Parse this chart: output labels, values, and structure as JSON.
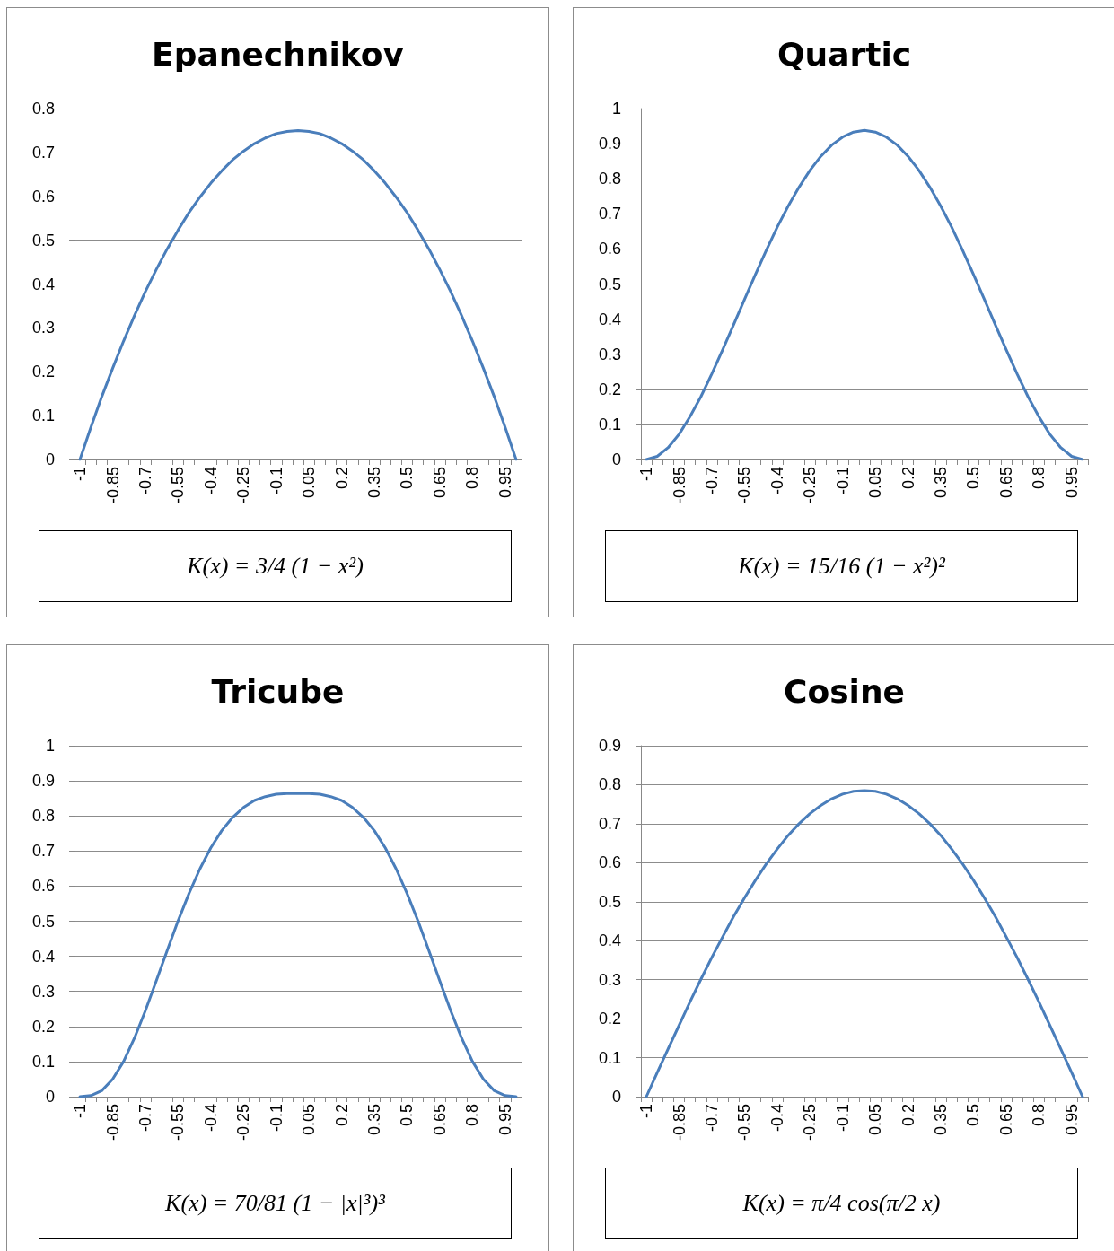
{
  "chart_data": [
    {
      "type": "line",
      "title": "Epanechnikov",
      "categories": [
        "-1",
        null,
        null,
        "-0.85",
        null,
        null,
        "-0.7",
        null,
        null,
        "-0.55",
        null,
        null,
        "-0.4",
        null,
        null,
        "-0.25",
        null,
        null,
        "-0.1",
        null,
        null,
        "0.05",
        null,
        null,
        "0.2",
        null,
        null,
        "0.35",
        null,
        null,
        "0.5",
        null,
        null,
        "0.65",
        null,
        null,
        "0.8",
        null,
        null,
        "0.95",
        null
      ],
      "series": [
        {
          "color": "#4a7ebb",
          "values": [
            0,
            0.073,
            0.143,
            0.208,
            0.27,
            0.328,
            0.383,
            0.433,
            0.48,
            0.523,
            0.563,
            0.598,
            0.63,
            0.658,
            0.683,
            0.703,
            0.72,
            0.733,
            0.743,
            0.748,
            0.75,
            0.748,
            0.743,
            0.733,
            0.72,
            0.703,
            0.683,
            0.658,
            0.63,
            0.598,
            0.563,
            0.523,
            0.48,
            0.433,
            0.383,
            0.328,
            0.27,
            0.208,
            0.143,
            0.073,
            0
          ]
        }
      ],
      "ylim": [
        0,
        0.8
      ],
      "yticks": [
        0,
        0.1,
        0.2,
        0.3,
        0.4,
        0.5,
        0.6,
        0.7,
        0.8
      ],
      "grid": "y",
      "marker": "none",
      "line_style": "solid",
      "annotations": [
        "K(x) = 3/4 (1 − x²)"
      ]
    },
    {
      "type": "line",
      "title": "Quartic",
      "categories": [
        "-1",
        null,
        null,
        "-0.85",
        null,
        null,
        "-0.7",
        null,
        null,
        "-0.55",
        null,
        null,
        "-0.4",
        null,
        null,
        "-0.25",
        null,
        null,
        "-0.1",
        null,
        null,
        "0.05",
        null,
        null,
        "0.2",
        null,
        null,
        "0.35",
        null,
        null,
        "0.5",
        null,
        null,
        "0.65",
        null,
        null,
        "0.8",
        null,
        null,
        "0.95",
        null
      ],
      "series": [
        {
          "color": "#4a7ebb",
          "values": [
            0,
            0.009,
            0.034,
            0.072,
            0.122,
            0.179,
            0.244,
            0.313,
            0.384,
            0.456,
            0.527,
            0.596,
            0.662,
            0.722,
            0.776,
            0.824,
            0.864,
            0.896,
            0.919,
            0.933,
            0.938,
            0.933,
            0.919,
            0.896,
            0.864,
            0.824,
            0.776,
            0.722,
            0.662,
            0.596,
            0.527,
            0.456,
            0.384,
            0.313,
            0.244,
            0.179,
            0.122,
            0.072,
            0.034,
            0.009,
            0
          ]
        }
      ],
      "ylim": [
        0,
        1
      ],
      "yticks": [
        0,
        0.1,
        0.2,
        0.3,
        0.4,
        0.5,
        0.6,
        0.7,
        0.8,
        0.9,
        1
      ],
      "grid": "y",
      "marker": "none",
      "line_style": "solid",
      "annotations": [
        "K(x) = 15/16 (1 − x²)²"
      ]
    },
    {
      "type": "line",
      "title": "Tricube",
      "categories": [
        "-1",
        null,
        null,
        "-0.85",
        null,
        null,
        "-0.7",
        null,
        null,
        "-0.55",
        null,
        null,
        "-0.4",
        null,
        null,
        "-0.25",
        null,
        null,
        "-0.1",
        null,
        null,
        "0.05",
        null,
        null,
        "0.2",
        null,
        null,
        "0.35",
        null,
        null,
        "0.5",
        null,
        null,
        "0.65",
        null,
        null,
        "0.8",
        null,
        null,
        "0.95",
        null
      ],
      "series": [
        {
          "color": "#4a7ebb",
          "values": [
            0,
            0.003,
            0.017,
            0.05,
            0.1,
            0.167,
            0.245,
            0.33,
            0.416,
            0.501,
            0.579,
            0.649,
            0.709,
            0.758,
            0.796,
            0.824,
            0.844,
            0.855,
            0.862,
            0.864,
            0.864,
            0.864,
            0.862,
            0.855,
            0.844,
            0.824,
            0.796,
            0.758,
            0.709,
            0.649,
            0.579,
            0.501,
            0.416,
            0.33,
            0.245,
            0.167,
            0.1,
            0.05,
            0.017,
            0.003,
            0
          ]
        }
      ],
      "ylim": [
        0,
        1
      ],
      "yticks": [
        0,
        0.1,
        0.2,
        0.3,
        0.4,
        0.5,
        0.6,
        0.7,
        0.8,
        0.9,
        1
      ],
      "grid": "y",
      "marker": "none",
      "line_style": "solid",
      "annotations": [
        "K(x) = 70/81 (1 − |x|³)³"
      ]
    },
    {
      "type": "line",
      "title": "Cosine",
      "categories": [
        "-1",
        null,
        null,
        "-0.85",
        null,
        null,
        "-0.7",
        null,
        null,
        "-0.55",
        null,
        null,
        "-0.4",
        null,
        null,
        "-0.25",
        null,
        null,
        "-0.1",
        null,
        null,
        "0.05",
        null,
        null,
        "0.2",
        null,
        null,
        "0.35",
        null,
        null,
        "0.5",
        null,
        null,
        "0.65",
        null,
        null,
        "0.8",
        null,
        null,
        "0.95",
        null
      ],
      "series": [
        {
          "color": "#4a7ebb",
          "values": [
            0,
            0.062,
            0.123,
            0.183,
            0.243,
            0.301,
            0.357,
            0.41,
            0.462,
            0.51,
            0.555,
            0.597,
            0.635,
            0.67,
            0.7,
            0.726,
            0.747,
            0.764,
            0.776,
            0.783,
            0.785,
            0.783,
            0.776,
            0.764,
            0.747,
            0.726,
            0.7,
            0.67,
            0.635,
            0.597,
            0.555,
            0.51,
            0.462,
            0.41,
            0.357,
            0.301,
            0.243,
            0.183,
            0.123,
            0.062,
            0
          ]
        }
      ],
      "ylim": [
        0,
        0.9
      ],
      "yticks": [
        0,
        0.1,
        0.2,
        0.3,
        0.4,
        0.5,
        0.6,
        0.7,
        0.8,
        0.9
      ],
      "grid": "y",
      "marker": "none",
      "line_style": "solid",
      "annotations": [
        "K(x) = π/4 cos(π/2 x)"
      ]
    }
  ]
}
